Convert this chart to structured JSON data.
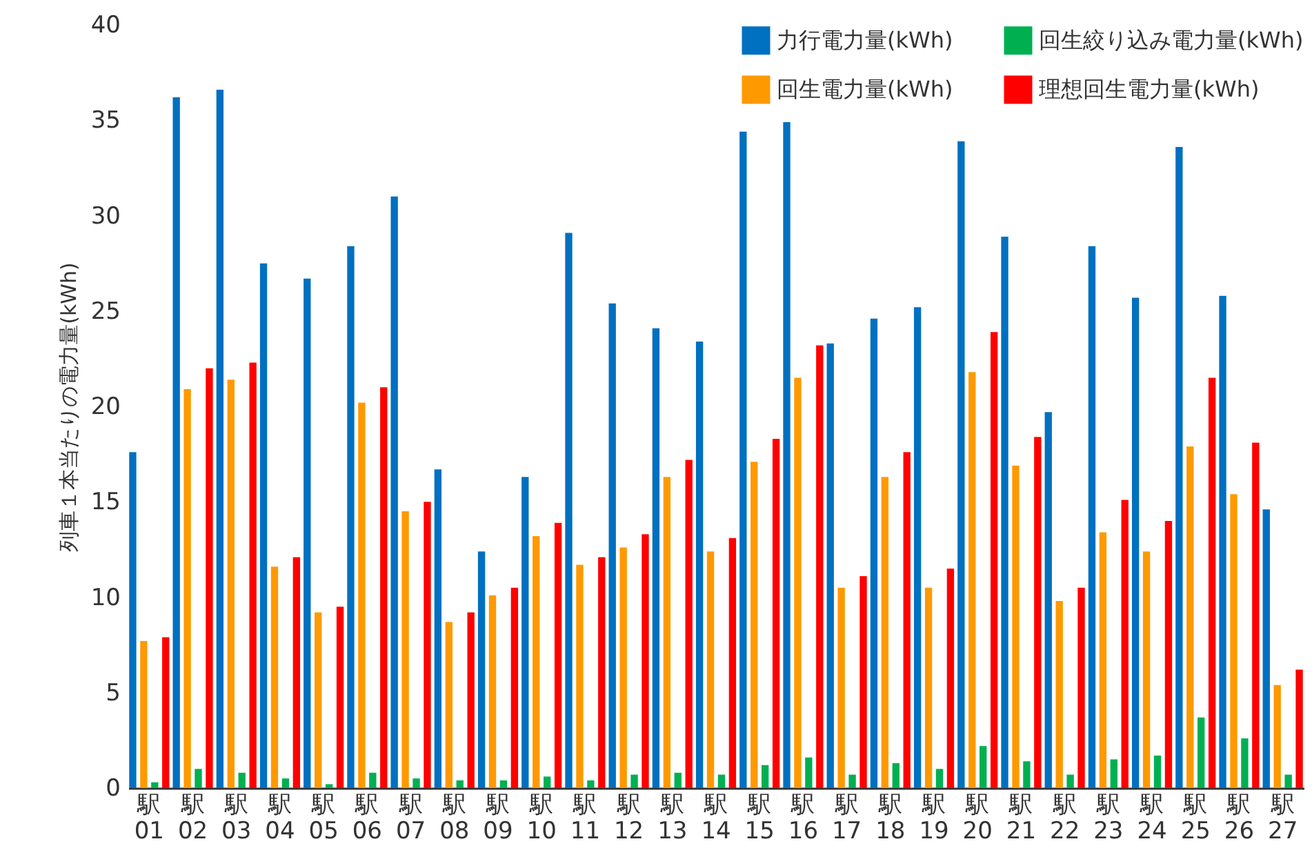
{
  "chart_data": {
    "type": "bar",
    "ylabel": "列車１本当たりの電力量(kWh)",
    "categories": [
      "駅\n01",
      "駅\n02",
      "駅\n03",
      "駅\n04",
      "駅\n05",
      "駅\n06",
      "駅\n07",
      "駅\n08",
      "駅\n09",
      "駅\n10",
      "駅\n11",
      "駅\n12",
      "駅\n13",
      "駅\n14",
      "駅\n15",
      "駅\n16",
      "駅\n17",
      "駅\n18",
      "駅\n19",
      "駅\n20",
      "駅\n21",
      "駅\n22",
      "駅\n23",
      "駅\n24",
      "駅\n25",
      "駅\n26",
      "駅\n27"
    ],
    "series": [
      {
        "name": "力行電力量(kWh)",
        "color": "#0070c0",
        "values": [
          17.6,
          36.2,
          36.6,
          27.5,
          26.7,
          28.4,
          31.0,
          16.7,
          12.4,
          16.3,
          29.1,
          25.4,
          24.1,
          23.4,
          34.4,
          34.9,
          23.3,
          24.6,
          25.2,
          33.9,
          28.9,
          19.7,
          28.4,
          25.7,
          33.6,
          25.8,
          14.6
        ]
      },
      {
        "name": "回生電力量(kWh)",
        "color": "#ff9900",
        "values": [
          7.7,
          20.9,
          21.4,
          11.6,
          9.2,
          20.2,
          14.5,
          8.7,
          10.1,
          13.2,
          11.7,
          12.6,
          16.3,
          12.4,
          17.1,
          21.5,
          10.5,
          16.3,
          10.5,
          21.8,
          16.9,
          9.8,
          13.4,
          12.4,
          17.9,
          15.4,
          5.4
        ]
      },
      {
        "name": "回生絞り込み電力量(kWh)",
        "color": "#00b050",
        "values": [
          0.3,
          1.0,
          0.8,
          0.5,
          0.2,
          0.8,
          0.5,
          0.4,
          0.4,
          0.6,
          0.4,
          0.7,
          0.8,
          0.7,
          1.2,
          1.6,
          0.7,
          1.3,
          1.0,
          2.2,
          1.4,
          0.7,
          1.5,
          1.7,
          3.7,
          2.6,
          0.7
        ]
      },
      {
        "name": "理想回生電力量(kWh)",
        "color": "#ff0000",
        "values": [
          7.9,
          22.0,
          22.3,
          12.1,
          9.5,
          21.0,
          15.0,
          9.2,
          10.5,
          13.9,
          12.1,
          13.3,
          17.2,
          13.1,
          18.3,
          23.2,
          11.1,
          17.6,
          11.5,
          23.9,
          18.4,
          10.5,
          15.1,
          14.0,
          21.5,
          18.1,
          6.2
        ]
      }
    ],
    "ylim": [
      0,
      40
    ],
    "yticks": [
      0,
      5,
      10,
      15,
      20,
      25,
      30,
      35,
      40
    ],
    "grid": false,
    "legend": "top right"
  }
}
